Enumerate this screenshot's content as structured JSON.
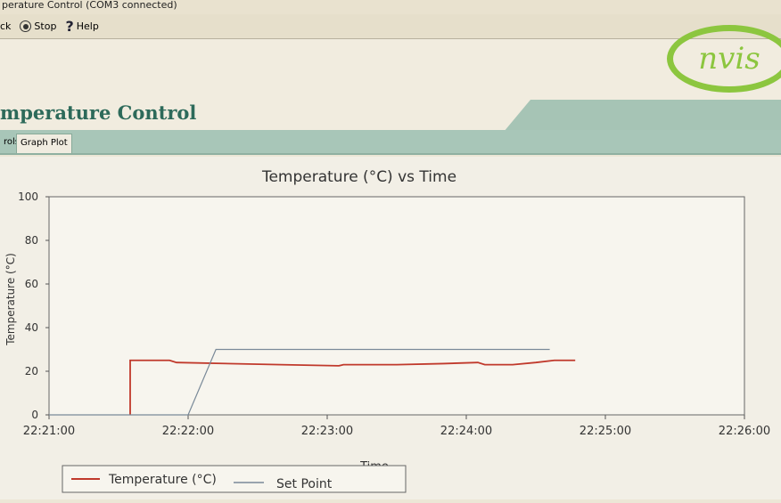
{
  "window": {
    "title": "perature Control (COM3 connected)"
  },
  "toolbar": {
    "back": "ck",
    "stop": "Stop",
    "help": "Help"
  },
  "header": {
    "logo_text": "nvis",
    "app_title": "mperature Control"
  },
  "tabs": [
    {
      "label": "rols"
    },
    {
      "label": "Graph Plot",
      "active": true
    }
  ],
  "colors": {
    "temperature": "#c0392b",
    "set_point": "#7a8a99",
    "title_green": "#2d6a5a",
    "logo_green": "#8cc63f"
  },
  "chart_data": {
    "type": "line",
    "title": "Temperature (°C) vs Time",
    "xlabel": "Time",
    "ylabel": "Temperature (°C)",
    "ylim": [
      0,
      100
    ],
    "yticks": [
      "0",
      "20",
      "40",
      "60",
      "80",
      "100"
    ],
    "xlim": [
      "22:21:00",
      "22:26:00"
    ],
    "xticks": [
      "22:21:00",
      "22:22:00",
      "22:23:00",
      "22:24:00",
      "22:25:00",
      "22:26:00"
    ],
    "legend": "bottom",
    "series": [
      {
        "name": "Temperature (°C)",
        "points": [
          [
            "22:21:35",
            0
          ],
          [
            "22:21:35",
            25
          ],
          [
            "22:21:52",
            25
          ],
          [
            "22:21:55",
            24
          ],
          [
            "22:22:40",
            23
          ],
          [
            "22:23:05",
            22.5
          ],
          [
            "22:23:07",
            23
          ],
          [
            "22:23:30",
            23
          ],
          [
            "22:23:50",
            23.5
          ],
          [
            "22:24:05",
            24
          ],
          [
            "22:24:08",
            23
          ],
          [
            "22:24:20",
            23
          ],
          [
            "22:24:30",
            24
          ],
          [
            "22:24:38",
            25
          ],
          [
            "22:24:47",
            25
          ]
        ]
      },
      {
        "name": "Set Point",
        "points": [
          [
            "22:21:00",
            0
          ],
          [
            "22:22:00",
            0
          ],
          [
            "22:22:12",
            30
          ],
          [
            "22:24:36",
            30
          ]
        ]
      }
    ]
  }
}
